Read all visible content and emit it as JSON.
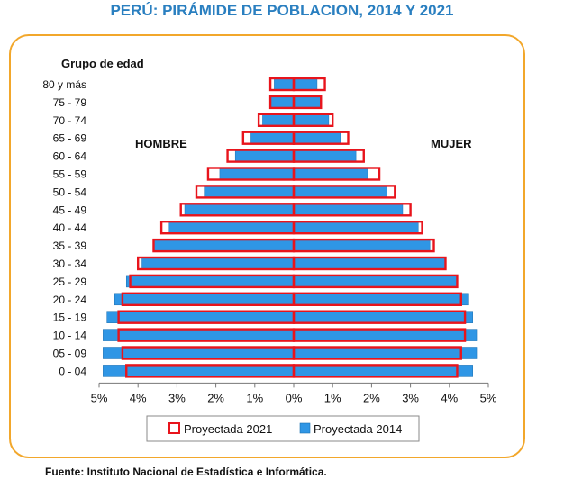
{
  "title": "PERÚ: PIRÁMIDE DE POBLACION, 2014 Y 2021",
  "source": "Fuente: Instituto Nacional de Estadística e Informática.",
  "colors": {
    "series_2014": "#2f96e5",
    "series_2021_outline": "#e8141c",
    "frame": "#f2a72b",
    "title": "#2a7fc0"
  },
  "chart_data": {
    "type": "bar",
    "orientation": "horizontal-population-pyramid",
    "y_axis_title": "Grupo de edad",
    "left_label": "HOMBRE",
    "right_label": "MUJER",
    "categories": [
      "80 y más",
      "75 - 79",
      "70 - 74",
      "65 - 69",
      "60 - 64",
      "55 - 59",
      "50 - 54",
      "45 - 49",
      "40 - 44",
      "35 - 39",
      "30 - 34",
      "25 - 29",
      "20 - 24",
      "15 - 19",
      "10 - 14",
      "05 - 09",
      "0 - 04"
    ],
    "x_ticks": [
      "5%",
      "4%",
      "3%",
      "2%",
      "1%",
      "0%",
      "1%",
      "2%",
      "3%",
      "4%",
      "5%"
    ],
    "xlim": [
      -5,
      5
    ],
    "series": [
      {
        "name": "Proyectada 2014",
        "style": "filled",
        "hombre": [
          0.5,
          0.6,
          0.8,
          1.1,
          1.5,
          1.9,
          2.3,
          2.8,
          3.2,
          3.6,
          3.9,
          4.3,
          4.6,
          4.8,
          4.9,
          4.9,
          4.9
        ],
        "mujer": [
          0.6,
          0.7,
          0.9,
          1.2,
          1.6,
          1.9,
          2.4,
          2.8,
          3.2,
          3.5,
          3.9,
          4.2,
          4.5,
          4.6,
          4.7,
          4.7,
          4.6
        ]
      },
      {
        "name": "Proyectada 2021",
        "style": "outline",
        "hombre": [
          0.6,
          0.6,
          0.9,
          1.3,
          1.7,
          2.2,
          2.5,
          2.9,
          3.4,
          3.6,
          4.0,
          4.2,
          4.4,
          4.5,
          4.5,
          4.4,
          4.3
        ],
        "mujer": [
          0.8,
          0.7,
          1.0,
          1.4,
          1.8,
          2.2,
          2.6,
          3.0,
          3.3,
          3.6,
          3.9,
          4.2,
          4.3,
          4.4,
          4.4,
          4.3,
          4.2
        ]
      }
    ]
  }
}
